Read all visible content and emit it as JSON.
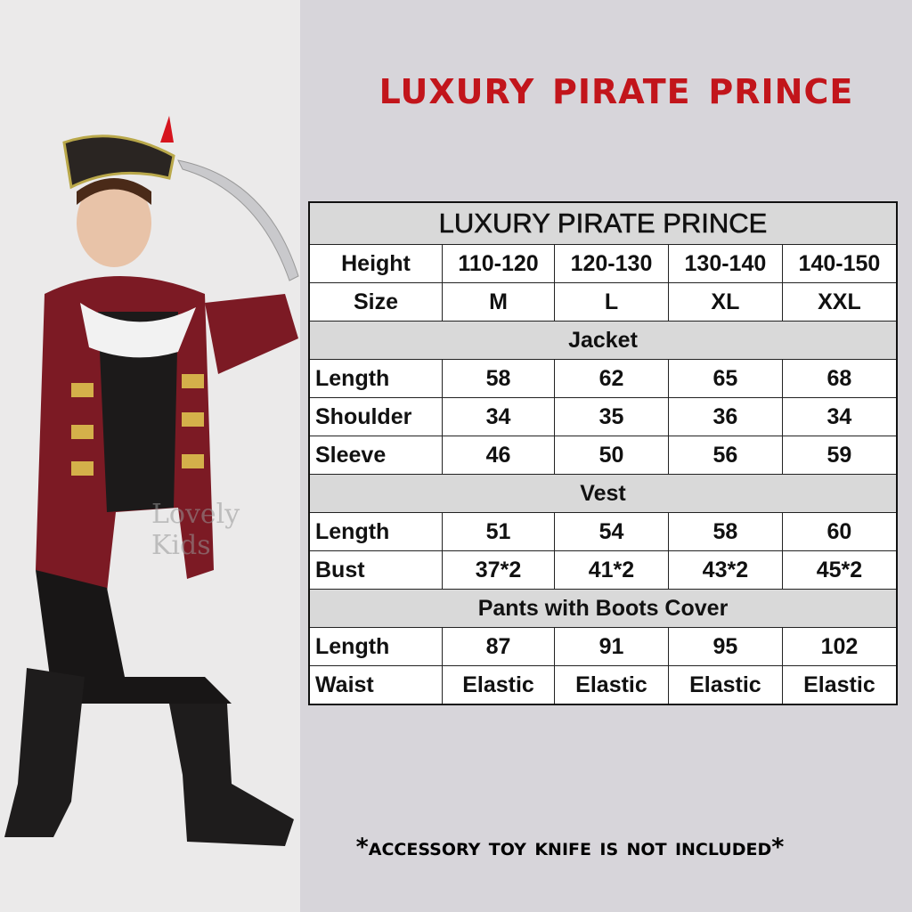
{
  "headline": "Luxury Pirate Prince",
  "watermark": "Lovely Kids",
  "table": {
    "title": "LUXURY PIRATE PRINCE",
    "height_label": "Height",
    "heights": [
      "110-120",
      "120-130",
      "130-140",
      "140-150"
    ],
    "size_label": "Size",
    "sizes": [
      "M",
      "L",
      "XL",
      "XXL"
    ],
    "sections": [
      {
        "name": "Jacket",
        "rows": [
          {
            "label": "Length",
            "values": [
              "58",
              "62",
              "65",
              "68"
            ]
          },
          {
            "label": "Shoulder",
            "values": [
              "34",
              "35",
              "36",
              "34"
            ]
          },
          {
            "label": "Sleeve",
            "values": [
              "46",
              "50",
              "56",
              "59"
            ]
          }
        ]
      },
      {
        "name": "Vest",
        "rows": [
          {
            "label": "Length",
            "values": [
              "51",
              "54",
              "58",
              "60"
            ]
          },
          {
            "label": "Bust",
            "values": [
              "37*2",
              "41*2",
              "43*2",
              "45*2"
            ]
          }
        ]
      },
      {
        "name": "Pants with Boots Cover",
        "rows": [
          {
            "label": "Length",
            "values": [
              "87",
              "91",
              "95",
              "102"
            ]
          },
          {
            "label": "Waist",
            "values": [
              "Elastic",
              "Elastic",
              "Elastic",
              "Elastic"
            ]
          }
        ]
      }
    ]
  },
  "note": "*Accessory toy knife is not included*",
  "colors": {
    "headline": "#c2151b",
    "background": "#d7d5da",
    "section_fill": "#d9d9d9"
  }
}
